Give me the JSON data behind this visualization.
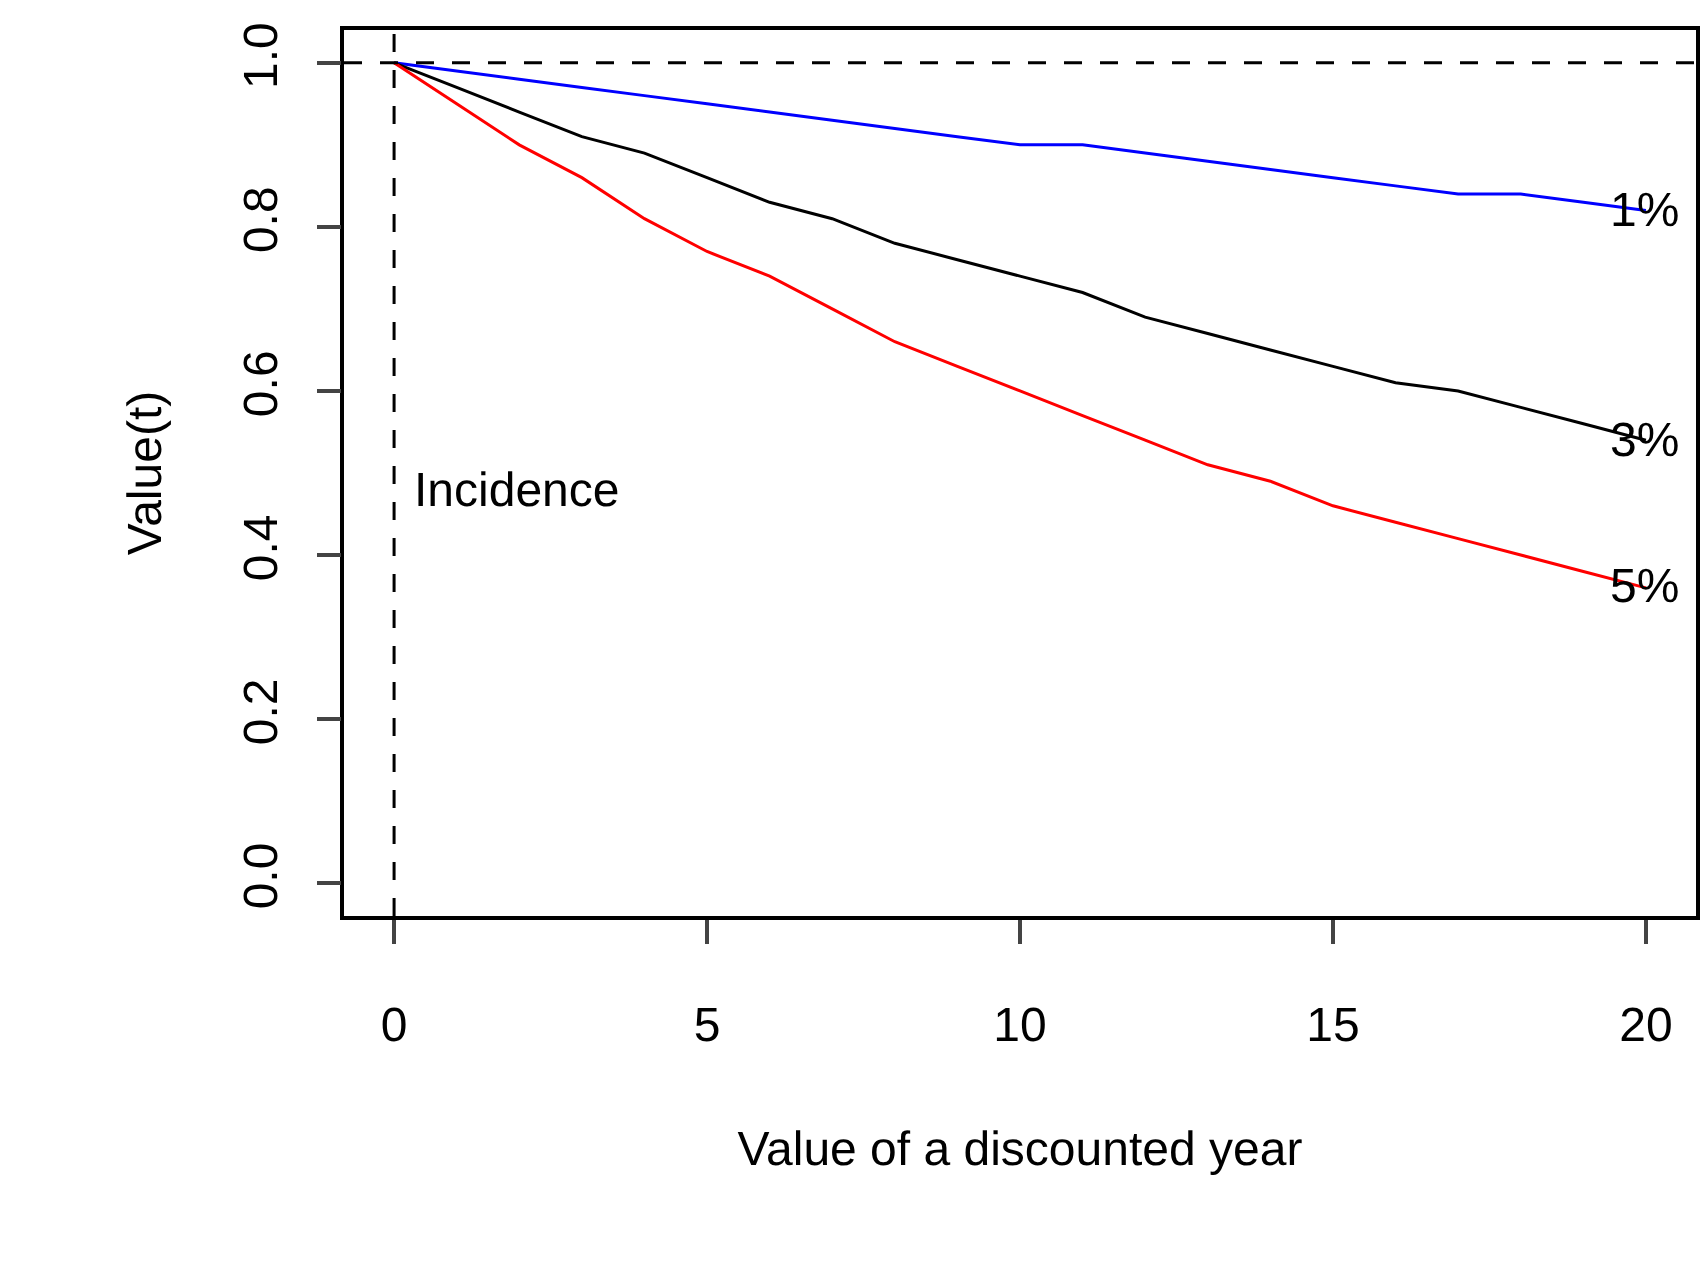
{
  "chart_data": {
    "type": "line",
    "xlabel": "Value of a discounted year",
    "ylabel": "Value(t)",
    "x": [
      0,
      1,
      2,
      3,
      4,
      5,
      6,
      7,
      8,
      9,
      10,
      11,
      12,
      13,
      14,
      15,
      16,
      17,
      18,
      19,
      20
    ],
    "series": [
      {
        "name": "1%",
        "color": "#0000ff",
        "values": [
          1,
          0.99,
          0.98,
          0.97,
          0.96,
          0.95,
          0.94,
          0.93,
          0.92,
          0.91,
          0.9,
          0.9,
          0.89,
          0.88,
          0.87,
          0.86,
          0.85,
          0.84,
          0.84,
          0.83,
          0.82
        ]
      },
      {
        "name": "3%",
        "color": "#000000",
        "values": [
          1,
          0.97,
          0.94,
          0.91,
          0.89,
          0.86,
          0.83,
          0.81,
          0.78,
          0.76,
          0.74,
          0.72,
          0.69,
          0.67,
          0.65,
          0.63,
          0.61,
          0.6,
          0.58,
          0.56,
          0.54
        ]
      },
      {
        "name": "5%",
        "color": "#ff0000",
        "values": [
          1,
          0.95,
          0.9,
          0.86,
          0.81,
          0.77,
          0.74,
          0.7,
          0.66,
          0.63,
          0.6,
          0.57,
          0.54,
          0.51,
          0.49,
          0.46,
          0.44,
          0.42,
          0.4,
          0.38,
          0.36
        ]
      }
    ],
    "xlim": [
      -0.8,
      20.8
    ],
    "ylim": [
      -0.04,
      1.04
    ],
    "xticks": [
      0,
      5,
      10,
      15,
      20
    ],
    "yticks": [
      {
        "value": 0,
        "label": "0.0"
      },
      {
        "value": 0.2,
        "label": "0.2"
      },
      {
        "value": 0.4,
        "label": "0.4"
      },
      {
        "value": 0.6,
        "label": "0.6"
      },
      {
        "value": 0.8,
        "label": "0.8"
      },
      {
        "value": 1,
        "label": "1.0"
      }
    ],
    "ref_lines": [
      {
        "axis": "y",
        "value": 1,
        "line_style": "dashed",
        "color": "#000000"
      },
      {
        "axis": "x",
        "value": 0,
        "line_style": "dashed",
        "color": "#000000",
        "label": "Incidence"
      }
    ],
    "grid": false,
    "legend": false,
    "marker": "none",
    "line_style": "solid"
  }
}
